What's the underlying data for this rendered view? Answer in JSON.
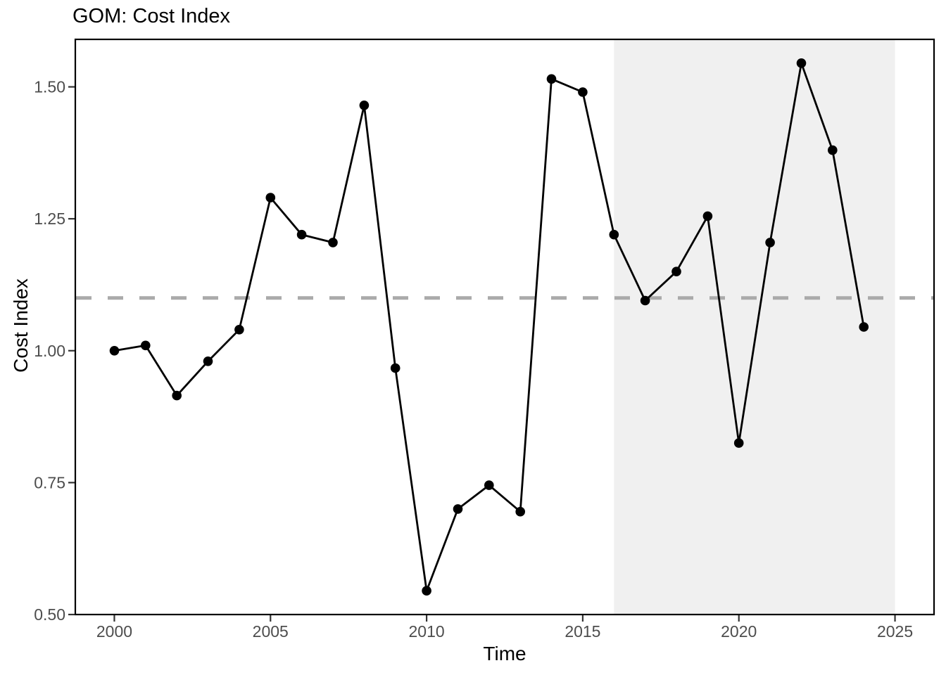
{
  "title": "GOM: Cost Index",
  "chart_data": {
    "type": "line",
    "title": "GOM: Cost Index",
    "xlabel": "Time",
    "ylabel": "Cost Index",
    "x": [
      2000,
      2001,
      2002,
      2003,
      2004,
      2005,
      2006,
      2007,
      2008,
      2009,
      2010,
      2011,
      2012,
      2013,
      2014,
      2015,
      2016,
      2017,
      2018,
      2019,
      2020,
      2021,
      2022,
      2023,
      2024
    ],
    "values": [
      1.0,
      1.01,
      0.915,
      0.98,
      1.04,
      1.29,
      1.22,
      1.205,
      1.465,
      0.967,
      0.545,
      0.7,
      0.745,
      0.695,
      1.515,
      1.49,
      1.22,
      1.095,
      1.15,
      1.255,
      0.825,
      1.205,
      1.545,
      1.38,
      1.045
    ],
    "xlim": [
      1998.75,
      2026.25
    ],
    "ylim": [
      0.5,
      1.59
    ],
    "x_ticks": [
      2000,
      2005,
      2010,
      2015,
      2020,
      2025
    ],
    "x_tick_labels": [
      "2000",
      "2005",
      "2010",
      "2015",
      "2020",
      "2025"
    ],
    "y_ticks": [
      0.5,
      0.75,
      1.0,
      1.25,
      1.5
    ],
    "y_tick_labels": [
      "0.50",
      "0.75",
      "1.00",
      "1.25",
      "1.50"
    ],
    "grid": false,
    "legend": "none",
    "marker": "circle",
    "series_color": "#000000",
    "reference_line": {
      "orientation": "horizontal",
      "value": 1.1,
      "style": "dashed",
      "color": "#AAAAAA"
    },
    "shaded_region": {
      "x_start": 2016,
      "x_end": 2025,
      "color": "#F0F0F0"
    },
    "panel_border_color": "#000000",
    "tick_color": "#333333",
    "tick_label_color": "#4D4D4D"
  }
}
